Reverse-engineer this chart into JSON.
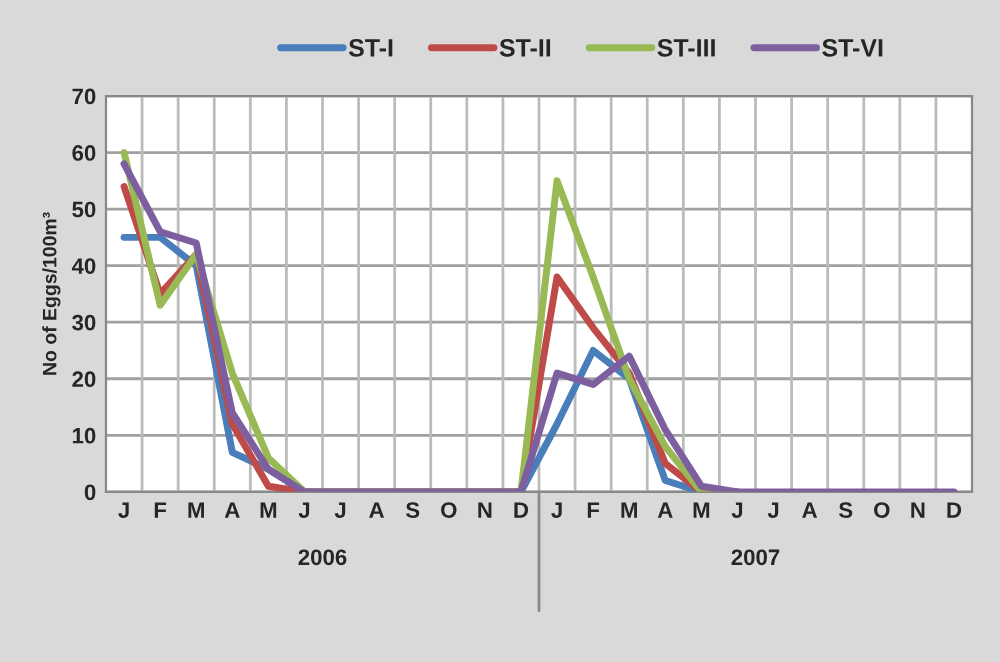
{
  "chart_data": {
    "type": "line",
    "ylabel": "No of Eggs/100m³",
    "categories": [
      "J",
      "F",
      "M",
      "A",
      "M",
      "J",
      "J",
      "A",
      "S",
      "O",
      "N",
      "D",
      "J",
      "F",
      "M",
      "A",
      "M",
      "J",
      "J",
      "A",
      "S",
      "O",
      "N",
      "D"
    ],
    "series": [
      {
        "name": "ST-I",
        "color": "#4a7ebb",
        "values": [
          45,
          45,
          40,
          7,
          4,
          0,
          0,
          0,
          0,
          0,
          0,
          0,
          12,
          25,
          20,
          2,
          0,
          0,
          null,
          null,
          null,
          null,
          null,
          null
        ]
      },
      {
        "name": "ST-II",
        "color": "#be4b48",
        "values": [
          54,
          35,
          42,
          12,
          1,
          0,
          0,
          0,
          0,
          0,
          0,
          0,
          38,
          29,
          21,
          5,
          0,
          0,
          null,
          null,
          null,
          null,
          null,
          null
        ]
      },
      {
        "name": "ST-III",
        "color": "#98b954",
        "values": [
          60,
          33,
          42,
          21,
          6,
          0,
          0,
          0,
          0,
          0,
          0,
          0,
          55,
          38,
          20,
          8,
          0,
          0,
          null,
          null,
          null,
          null,
          null,
          null
        ]
      },
      {
        "name": "ST-VI",
        "color": "#7d5fa0",
        "values": [
          58,
          46,
          44,
          14,
          4,
          0,
          0,
          0,
          0,
          0,
          0,
          0,
          21,
          19,
          24,
          11,
          1,
          0,
          0,
          0,
          0,
          0,
          0,
          0
        ]
      }
    ],
    "annotations": [
      "2006",
      "2007"
    ],
    "ylim": [
      0,
      70
    ],
    "yticks": [
      0,
      10,
      20,
      30,
      40,
      50,
      60,
      70
    ],
    "grid": true,
    "legend": "top",
    "marker": "none",
    "line_style": "solid"
  }
}
